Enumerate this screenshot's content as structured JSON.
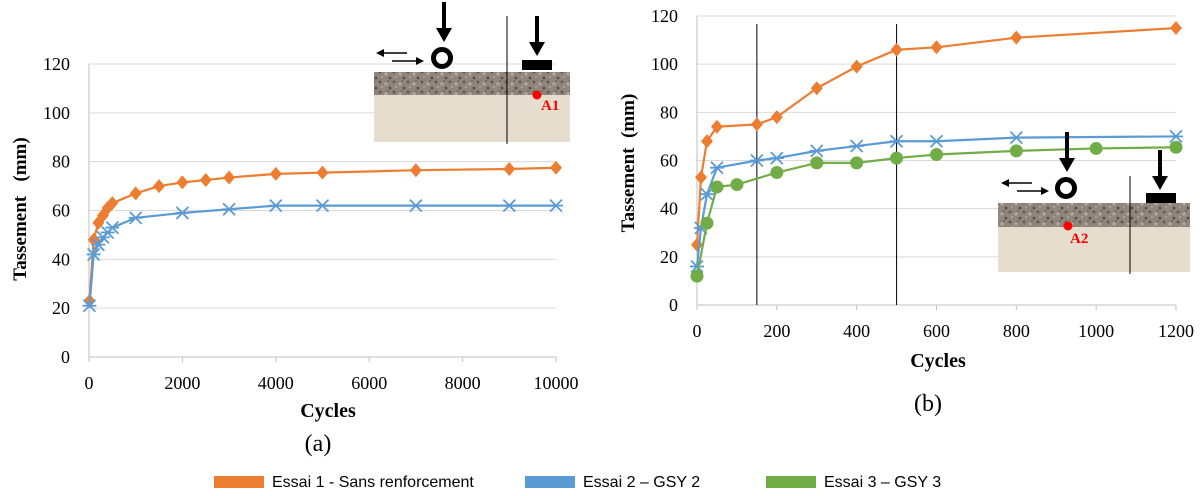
{
  "colors": {
    "essai1": "#ED7D31",
    "essai2": "#5B9BD5",
    "essai3": "#70AD47",
    "grid": "#D9D9D9",
    "axis": "#BFBFBF",
    "text": "#000000",
    "gravel": "#8F857C",
    "sand": "#E6DDCF",
    "marker_point": "#FF0000"
  },
  "chart_data": [
    {
      "id": "a",
      "type": "line",
      "panel_label": "(a)",
      "xlabel": "Cycles",
      "ylabel": "Tassement   (mm)",
      "xlim": [
        0,
        10000
      ],
      "ylim": [
        0,
        120
      ],
      "xticks": [
        0,
        2000,
        4000,
        6000,
        8000,
        10000
      ],
      "yticks": [
        0,
        20,
        40,
        60,
        80,
        100,
        120
      ],
      "grid": "horizontal",
      "series": [
        {
          "name": "Essai 1 - Sans renforcement",
          "color_key": "essai1",
          "marker": "diamond",
          "x": [
            10,
            100,
            200,
            300,
            400,
            500,
            1000,
            1500,
            2000,
            2500,
            3000,
            4000,
            5000,
            7000,
            9000,
            10000
          ],
          "y": [
            23,
            48,
            55,
            58,
            61,
            63,
            67,
            70,
            71.5,
            72.5,
            73.5,
            75,
            75.5,
            76.5,
            77,
            77.5
          ]
        },
        {
          "name": "Essai 2 – GSY 2",
          "color_key": "essai2",
          "marker": "star",
          "x": [
            10,
            100,
            200,
            300,
            400,
            500,
            1000,
            2000,
            3000,
            4000,
            5000,
            7000,
            9000,
            10000
          ],
          "y": [
            21,
            42,
            46,
            49,
            51,
            53,
            57,
            59,
            60.5,
            62,
            62,
            62,
            62,
            62
          ]
        }
      ],
      "vlines": [],
      "inset": {
        "point_label": "A1"
      }
    },
    {
      "id": "b",
      "type": "line",
      "panel_label": "(b)",
      "xlabel": "Cycles",
      "ylabel": "Tassement  (mm)",
      "xlim": [
        0,
        1200
      ],
      "ylim": [
        0,
        120
      ],
      "xticks": [
        0,
        200,
        400,
        600,
        800,
        1000,
        1200
      ],
      "yticks": [
        0,
        20,
        40,
        60,
        80,
        100,
        120
      ],
      "grid": "horizontal",
      "series": [
        {
          "name": "Essai 1 - Sans renforcement",
          "color_key": "essai1",
          "marker": "diamond",
          "x": [
            0,
            10,
            25,
            50,
            150,
            200,
            300,
            400,
            500,
            600,
            800,
            1200
          ],
          "y": [
            25,
            53,
            68,
            74,
            75,
            78,
            90,
            99,
            106,
            107,
            111,
            115
          ]
        },
        {
          "name": "Essai 2 – GSY 2",
          "color_key": "essai2",
          "marker": "star",
          "x": [
            0,
            10,
            25,
            50,
            150,
            200,
            300,
            400,
            500,
            600,
            800,
            1200
          ],
          "y": [
            16,
            32,
            46,
            57,
            60,
            61,
            64,
            66,
            68,
            68,
            69.5,
            70
          ]
        },
        {
          "name": "Essai 3 – GSY 3",
          "color_key": "essai3",
          "marker": "circle",
          "x": [
            0,
            25,
            50,
            100,
            200,
            300,
            400,
            500,
            600,
            800,
            1000,
            1200
          ],
          "y": [
            12,
            34,
            49,
            50,
            55,
            59,
            59,
            61,
            62.5,
            64,
            65,
            65.5
          ]
        }
      ],
      "vlines": [
        150,
        500
      ],
      "inset": {
        "point_label": "A2"
      }
    }
  ],
  "legend": [
    {
      "label": "Essai 1 - Sans renforcement",
      "color_key": "essai1"
    },
    {
      "label": "Essai 2 – GSY 2",
      "color_key": "essai2"
    },
    {
      "label": "Essai 3 – GSY 3",
      "color_key": "essai3"
    }
  ]
}
